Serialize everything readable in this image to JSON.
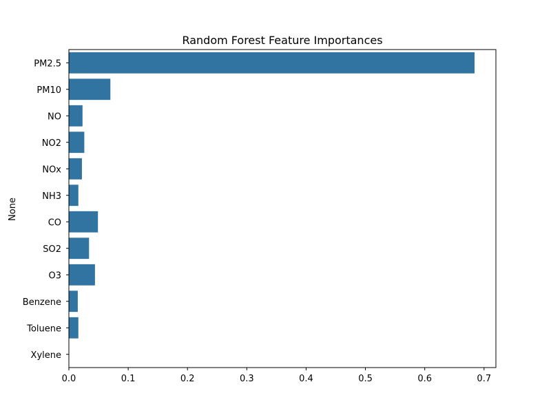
{
  "chart_data": {
    "type": "bar",
    "orientation": "horizontal",
    "title": "Random Forest Feature Importances",
    "xlabel": "",
    "ylabel": "None",
    "categories": [
      "PM2.5",
      "PM10",
      "NO",
      "NO2",
      "NOx",
      "NH3",
      "CO",
      "SO2",
      "O3",
      "Benzene",
      "Toluene",
      "Xylene"
    ],
    "values": [
      0.684,
      0.07,
      0.023,
      0.026,
      0.022,
      0.016,
      0.049,
      0.034,
      0.044,
      0.015,
      0.016,
      0.0
    ],
    "xlim": [
      0,
      0.72
    ],
    "xticks": [
      "0.0",
      "0.1",
      "0.2",
      "0.3",
      "0.4",
      "0.5",
      "0.6",
      "0.7"
    ],
    "bar_color": "#3274a1",
    "grid": false,
    "legend": "none"
  }
}
